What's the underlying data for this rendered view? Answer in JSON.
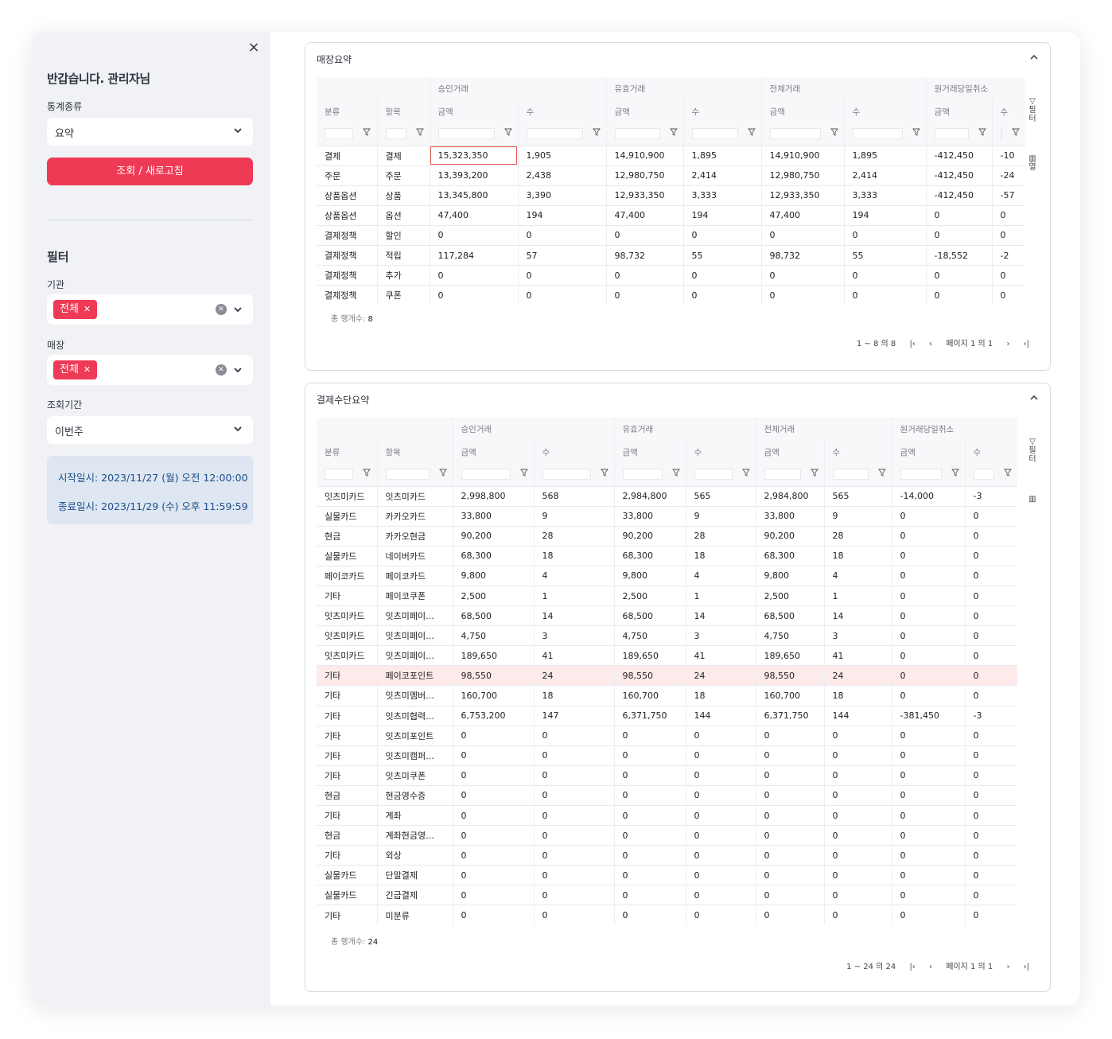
{
  "sidebar": {
    "close_label": "×",
    "greeting": "반갑습니다. 관리자님",
    "stat_type_label": "통계종류",
    "stat_type_value": "요약",
    "query_button": "조회 / 새로고침",
    "filter_heading": "필터",
    "org_label": "기관",
    "org_tag": "전체",
    "store_label": "매장",
    "store_tag": "전체",
    "period_label": "조회기간",
    "period_value": "이번주",
    "start_text": "시작일시: 2023/11/27 (월) 오전 12:00:00",
    "end_text": "종료일시: 2023/11/29 (수) 오후 11:59:59"
  },
  "store_summary": {
    "title": "매장요약",
    "groups": [
      "승인거래",
      "유효거래",
      "전체거래",
      "원거래당일취소"
    ],
    "cols": [
      "분류",
      "항목",
      "금액",
      "수",
      "금액",
      "수",
      "금액",
      "수",
      "금액",
      "수"
    ],
    "rows": [
      [
        "결제",
        "결제",
        "15,323,350",
        "1,905",
        "14,910,900",
        "1,895",
        "14,910,900",
        "1,895",
        "-412,450",
        "-10"
      ],
      [
        "주문",
        "주문",
        "13,393,200",
        "2,438",
        "12,980,750",
        "2,414",
        "12,980,750",
        "2,414",
        "-412,450",
        "-24"
      ],
      [
        "상품옵션",
        "상품",
        "13,345,800",
        "3,390",
        "12,933,350",
        "3,333",
        "12,933,350",
        "3,333",
        "-412,450",
        "-57"
      ],
      [
        "상품옵션",
        "옵션",
        "47,400",
        "194",
        "47,400",
        "194",
        "47,400",
        "194",
        "0",
        "0"
      ],
      [
        "결제정책",
        "할인",
        "0",
        "0",
        "0",
        "0",
        "0",
        "0",
        "0",
        "0"
      ],
      [
        "결제정책",
        "적립",
        "117,284",
        "57",
        "98,732",
        "55",
        "98,732",
        "55",
        "-18,552",
        "-2"
      ],
      [
        "결제정책",
        "추가",
        "0",
        "0",
        "0",
        "0",
        "0",
        "0",
        "0",
        "0"
      ],
      [
        "결제정책",
        "쿠폰",
        "0",
        "0",
        "0",
        "0",
        "0",
        "0",
        "0",
        "0"
      ]
    ],
    "total_label": "총 행개수:",
    "total_value": "8",
    "range": "1 ~ 8 의 8",
    "page": "페이지 1 의 1",
    "tool_filter": "필터",
    "tool_cols": "열"
  },
  "payment_summary": {
    "title": "결제수단요약",
    "groups": [
      "승인거래",
      "유효거래",
      "전체거래",
      "원거래당일취소"
    ],
    "cols": [
      "분류",
      "항목",
      "금액",
      "수",
      "금액",
      "수",
      "금액",
      "수",
      "금액",
      "수"
    ],
    "rows": [
      [
        "잇츠미카드",
        "잇츠미카드",
        "2,998,800",
        "568",
        "2,984,800",
        "565",
        "2,984,800",
        "565",
        "-14,000",
        "-3"
      ],
      [
        "실물카드",
        "카카오카드",
        "33,800",
        "9",
        "33,800",
        "9",
        "33,800",
        "9",
        "0",
        "0"
      ],
      [
        "현금",
        "카카오현금",
        "90,200",
        "28",
        "90,200",
        "28",
        "90,200",
        "28",
        "0",
        "0"
      ],
      [
        "실물카드",
        "네이버카드",
        "68,300",
        "18",
        "68,300",
        "18",
        "68,300",
        "18",
        "0",
        "0"
      ],
      [
        "페이코카드",
        "페이코카드",
        "9,800",
        "4",
        "9,800",
        "4",
        "9,800",
        "4",
        "0",
        "0"
      ],
      [
        "기타",
        "페이코쿠폰",
        "2,500",
        "1",
        "2,500",
        "1",
        "2,500",
        "1",
        "0",
        "0"
      ],
      [
        "잇츠미카드",
        "잇츠미페이…",
        "68,500",
        "14",
        "68,500",
        "14",
        "68,500",
        "14",
        "0",
        "0"
      ],
      [
        "잇츠미카드",
        "잇츠미페이…",
        "4,750",
        "3",
        "4,750",
        "3",
        "4,750",
        "3",
        "0",
        "0"
      ],
      [
        "잇츠미카드",
        "잇츠미페이…",
        "189,650",
        "41",
        "189,650",
        "41",
        "189,650",
        "41",
        "0",
        "0"
      ],
      [
        "기타",
        "페이코포인트",
        "98,550",
        "24",
        "98,550",
        "24",
        "98,550",
        "24",
        "0",
        "0"
      ],
      [
        "기타",
        "잇츠미멤버…",
        "160,700",
        "18",
        "160,700",
        "18",
        "160,700",
        "18",
        "0",
        "0"
      ],
      [
        "기타",
        "잇츠미협력…",
        "6,753,200",
        "147",
        "6,371,750",
        "144",
        "6,371,750",
        "144",
        "-381,450",
        "-3"
      ],
      [
        "기타",
        "잇츠미포인트",
        "0",
        "0",
        "0",
        "0",
        "0",
        "0",
        "0",
        "0"
      ],
      [
        "기타",
        "잇츠미캠퍼…",
        "0",
        "0",
        "0",
        "0",
        "0",
        "0",
        "0",
        "0"
      ],
      [
        "기타",
        "잇츠미쿠폰",
        "0",
        "0",
        "0",
        "0",
        "0",
        "0",
        "0",
        "0"
      ],
      [
        "현금",
        "현금영수증",
        "0",
        "0",
        "0",
        "0",
        "0",
        "0",
        "0",
        "0"
      ],
      [
        "기타",
        "계좌",
        "0",
        "0",
        "0",
        "0",
        "0",
        "0",
        "0",
        "0"
      ],
      [
        "현금",
        "계좌현금영…",
        "0",
        "0",
        "0",
        "0",
        "0",
        "0",
        "0",
        "0"
      ],
      [
        "기타",
        "외상",
        "0",
        "0",
        "0",
        "0",
        "0",
        "0",
        "0",
        "0"
      ],
      [
        "실물카드",
        "단말결제",
        "0",
        "0",
        "0",
        "0",
        "0",
        "0",
        "0",
        "0"
      ],
      [
        "실물카드",
        "긴급결제",
        "0",
        "0",
        "0",
        "0",
        "0",
        "0",
        "0",
        "0"
      ],
      [
        "기타",
        "미분류",
        "0",
        "0",
        "0",
        "0",
        "0",
        "0",
        "0",
        "0"
      ]
    ],
    "total_label": "총 행개수:",
    "total_value": "24",
    "range": "1 ~ 24 의 24",
    "page": "페이지 1 의 1",
    "tool_filter": "필터"
  },
  "colors": {
    "accent": "#ee3a55",
    "info_bg": "#dde6f1",
    "info_text": "#1f4e8c",
    "highlight_row": "#fdeaea"
  }
}
